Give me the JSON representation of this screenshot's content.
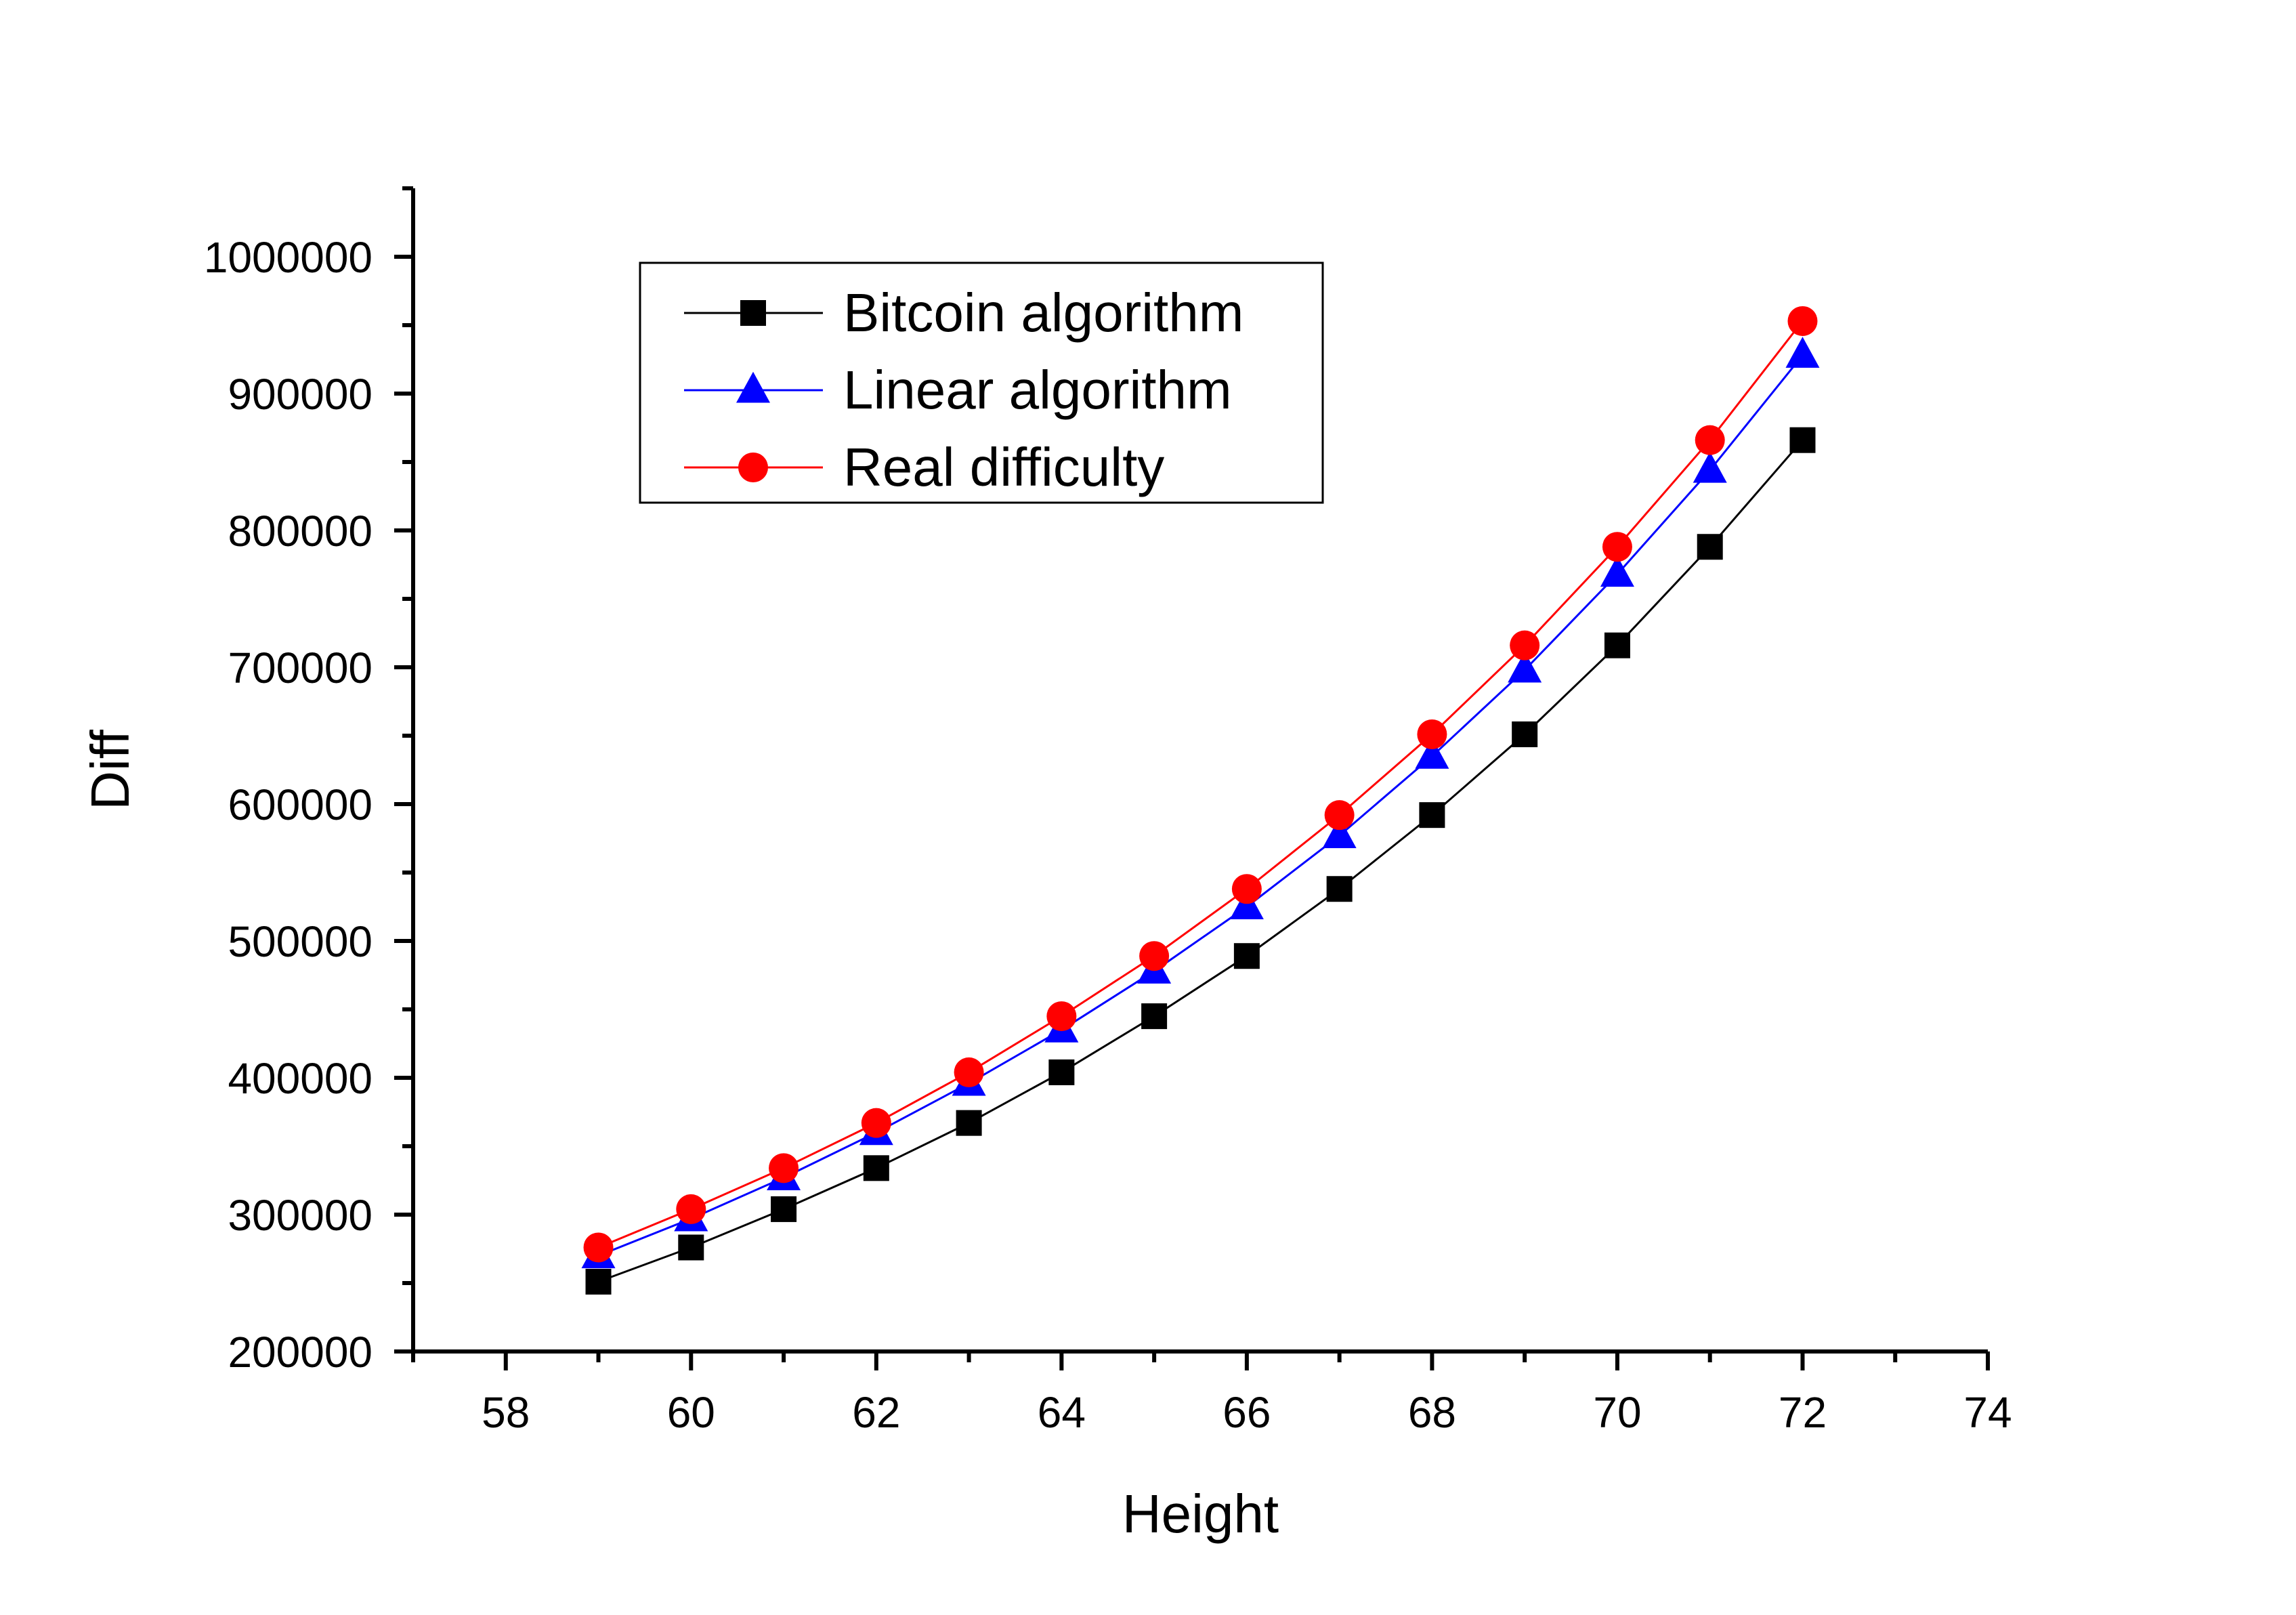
{
  "chart_data": {
    "type": "line",
    "title": "",
    "xlabel": "Height",
    "ylabel": "Diff",
    "xlim": [
      57,
      74
    ],
    "ylim": [
      200000,
      1050000
    ],
    "x_ticks": [
      58,
      60,
      62,
      64,
      66,
      68,
      70,
      72,
      74
    ],
    "x_tick_labels": [
      "58",
      "60",
      "62",
      "64",
      "66",
      "68",
      "70",
      "72",
      "74"
    ],
    "y_ticks": [
      200000,
      300000,
      400000,
      500000,
      600000,
      700000,
      800000,
      900000,
      1000000
    ],
    "y_tick_labels": [
      "200000",
      "300000",
      "400000",
      "500000",
      "600000",
      "700000",
      "800000",
      "900000",
      "1000000"
    ],
    "grid": false,
    "legend_position": "top-left",
    "x": [
      59,
      60,
      61,
      62,
      63,
      64,
      65,
      66,
      67,
      68,
      69,
      70,
      71,
      72
    ],
    "series": [
      {
        "name": "Bitcoin algorithm",
        "color": "#000000",
        "marker": "square",
        "values": [
          251000,
          276000,
          304000,
          334000,
          367000,
          404000,
          445000,
          489000,
          538000,
          592000,
          651000,
          716000,
          788000,
          866000
        ]
      },
      {
        "name": "Linear algorithm",
        "color": "#0000ff",
        "marker": "triangle",
        "values": [
          270000,
          297000,
          327000,
          360000,
          396000,
          435000,
          478000,
          525000,
          577000,
          635000,
          698000,
          768000,
          844000,
          928000
        ]
      },
      {
        "name": "Real difficulty",
        "color": "#ff0000",
        "marker": "circle",
        "values": [
          276000,
          304000,
          334000,
          367000,
          404000,
          445000,
          489000,
          538000,
          592000,
          651000,
          716000,
          788000,
          866000,
          953000
        ]
      }
    ]
  }
}
